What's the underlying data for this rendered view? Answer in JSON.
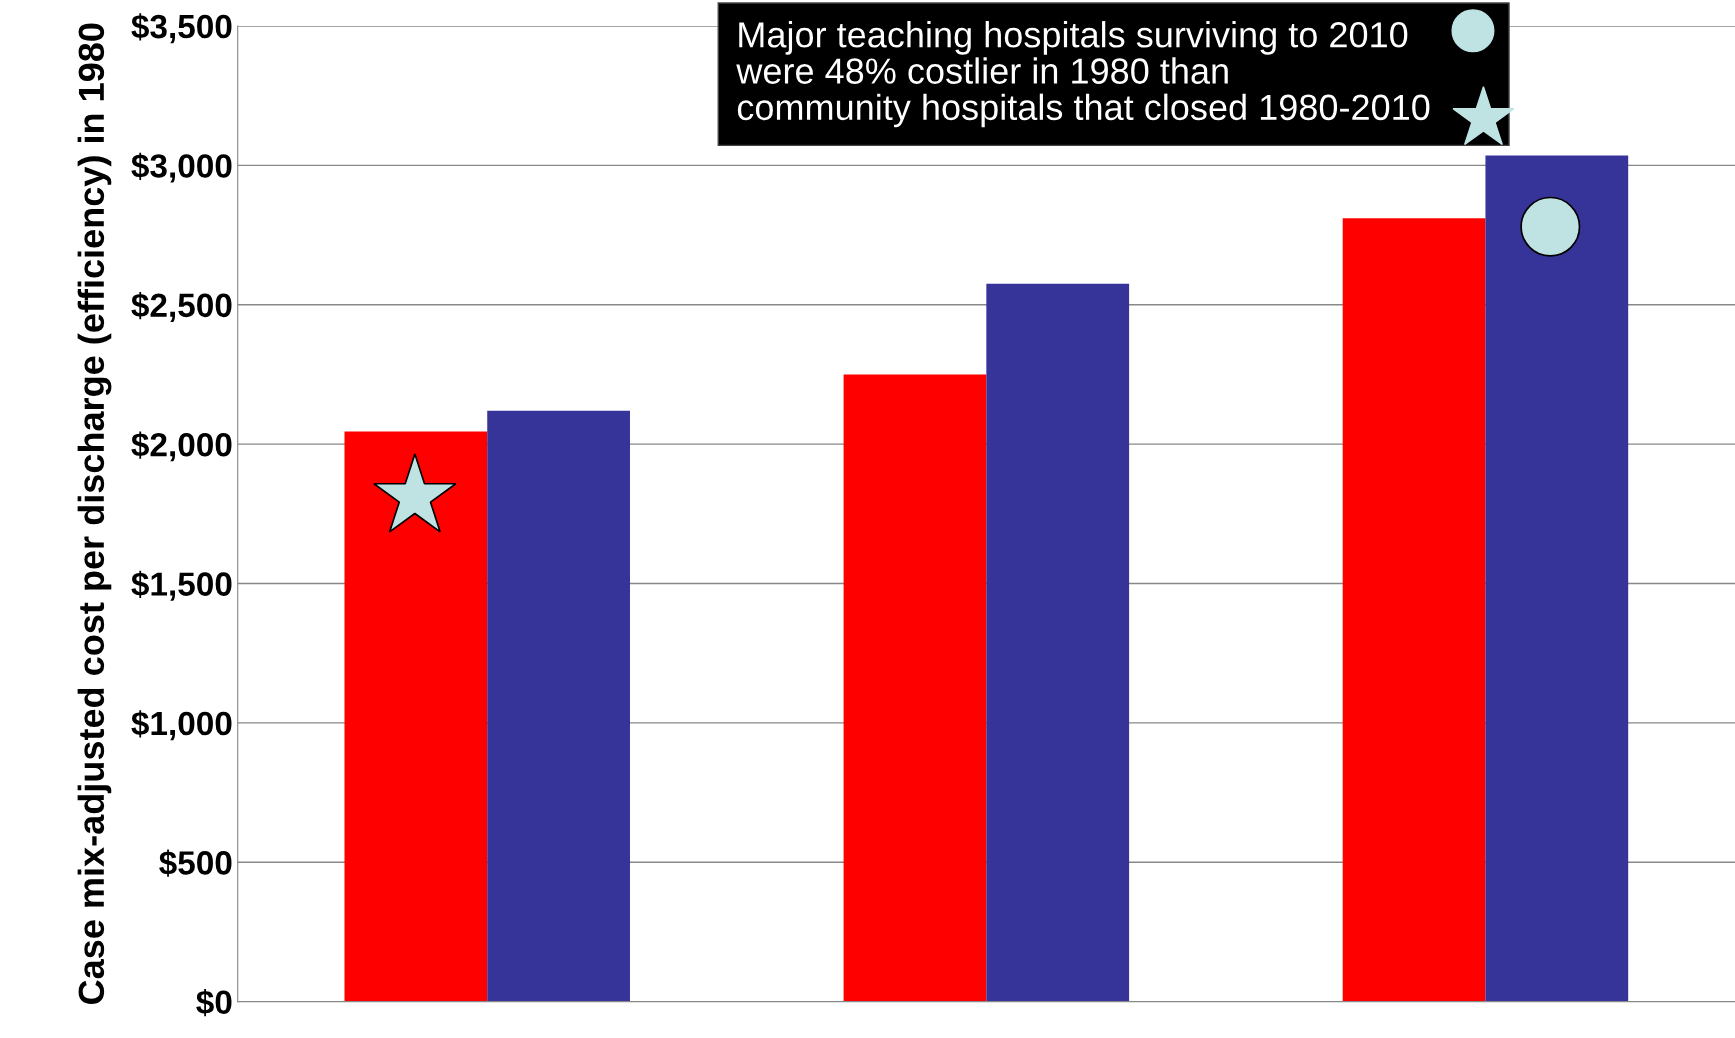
{
  "chart_data": {
    "type": "bar",
    "ylabel": "Case mix-adjusted cost per discharge (efficiency) in 1980",
    "categories": [
      null,
      null,
      null
    ],
    "series": [
      {
        "color": "#ff0000",
        "values": [
          2045,
          2250,
          2810
        ]
      },
      {
        "color": "#363399",
        "values": [
          2120,
          2575,
          3035
        ]
      }
    ],
    "ylim": [
      0,
      3500
    ],
    "yticks": [
      {
        "value": 0,
        "label": "$0"
      },
      {
        "value": 500,
        "label": "$500"
      },
      {
        "value": 1000,
        "label": "$1,000"
      },
      {
        "value": 1500,
        "label": "$1,500"
      },
      {
        "value": 2000,
        "label": "$2,000"
      },
      {
        "value": 2500,
        "label": "$2,500"
      },
      {
        "value": 3000,
        "label": "$3,000"
      },
      {
        "value": 3500,
        "label": "$3,500"
      }
    ],
    "grid": "y",
    "legend": false,
    "tick_labels": "y",
    "annotations": [
      "Major teaching hospitals surviving to 2010\nwere 48% costlier in 1980 than\ncommunity hospitals that closed 1980-2010"
    ]
  }
}
